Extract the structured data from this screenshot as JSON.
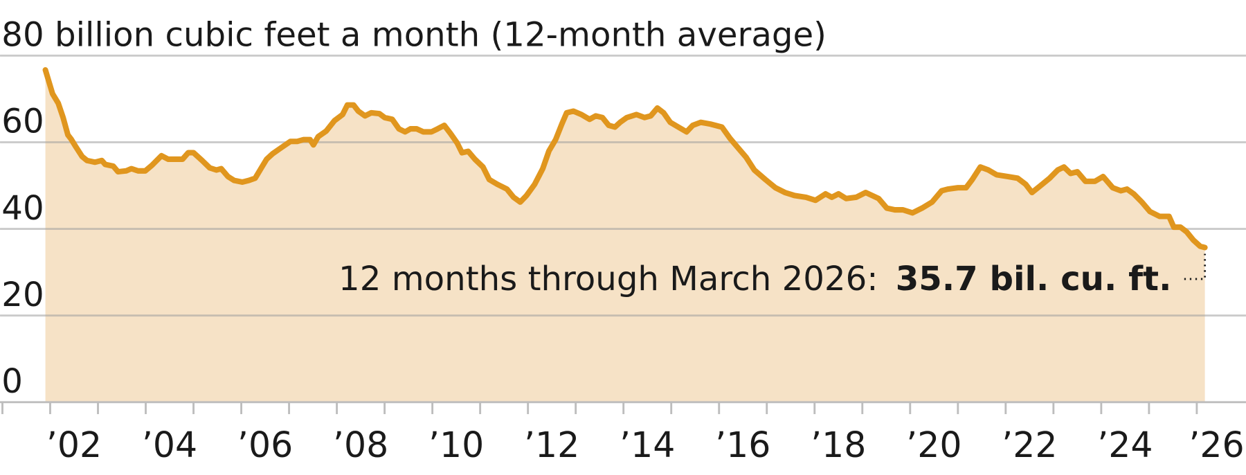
{
  "chart_data": {
    "type": "area",
    "yticks": [
      0,
      20,
      40,
      60,
      {
        "value": 80,
        "label": "80 billion cubic feet a month (12-month average)"
      }
    ],
    "ylim": [
      0,
      80
    ],
    "xlim": [
      2000.95,
      2027.03
    ],
    "xticks": [
      2001,
      2002,
      2003,
      2004,
      2005,
      2006,
      2007,
      2008,
      2009,
      2010,
      2011,
      2012,
      2013,
      2014,
      2015,
      2016,
      2017,
      2018,
      2019,
      2020,
      2021,
      2022,
      2023,
      2024,
      2025,
      2026
    ],
    "xtick_labels": [
      {
        "value": 2002.5,
        "label": "’02"
      },
      {
        "value": 2004.5,
        "label": "’04"
      },
      {
        "value": 2006.5,
        "label": "’06"
      },
      {
        "value": 2008.5,
        "label": "’08"
      },
      {
        "value": 2010.5,
        "label": "’10"
      },
      {
        "value": 2012.5,
        "label": "’12"
      },
      {
        "value": 2014.5,
        "label": "’14"
      },
      {
        "value": 2016.5,
        "label": "’16"
      },
      {
        "value": 2018.5,
        "label": "’18"
      },
      {
        "value": 2020.5,
        "label": "’20"
      },
      {
        "value": 2022.5,
        "label": "’22"
      },
      {
        "value": 2024.5,
        "label": "’24"
      },
      {
        "value": 2026.5,
        "label": "’26"
      }
    ],
    "grid": true,
    "color": "#e0961e",
    "fill": "#f6e2c6",
    "x": [
      2001.9,
      2002.05,
      2002.17,
      2002.27,
      2002.37,
      2002.44,
      2002.54,
      2002.67,
      2002.77,
      2002.94,
      2003.08,
      2003.15,
      2003.32,
      2003.42,
      2003.59,
      2003.7,
      2003.84,
      2003.99,
      2004.13,
      2004.33,
      2004.47,
      2004.63,
      2004.77,
      2004.89,
      2005.0,
      2005.18,
      2005.34,
      2005.48,
      2005.58,
      2005.72,
      2005.85,
      2006.02,
      2006.16,
      2006.29,
      2006.41,
      2006.53,
      2006.66,
      2006.83,
      2007.03,
      2007.17,
      2007.3,
      2007.44,
      2007.51,
      2007.61,
      2007.78,
      2007.95,
      2008.12,
      2008.22,
      2008.35,
      2008.45,
      2008.59,
      2008.72,
      2008.89,
      2009.0,
      2009.16,
      2009.3,
      2009.43,
      2009.54,
      2009.67,
      2009.81,
      2009.98,
      2010.11,
      2010.25,
      2010.38,
      2010.52,
      2010.62,
      2010.75,
      2010.89,
      2011.06,
      2011.19,
      2011.36,
      2011.56,
      2011.7,
      2011.84,
      2011.97,
      2012.14,
      2012.31,
      2012.44,
      2012.58,
      2012.71,
      2012.81,
      2012.95,
      2013.12,
      2013.29,
      2013.42,
      2013.56,
      2013.69,
      2013.82,
      2013.93,
      2014.07,
      2014.27,
      2014.44,
      2014.57,
      2014.71,
      2014.84,
      2014.98,
      2015.15,
      2015.32,
      2015.45,
      2015.62,
      2015.82,
      2016.06,
      2016.23,
      2016.43,
      2016.57,
      2016.74,
      2016.97,
      2017.18,
      2017.38,
      2017.58,
      2017.82,
      2018.02,
      2018.23,
      2018.36,
      2018.5,
      2018.66,
      2018.87,
      2019.07,
      2019.34,
      2019.51,
      2019.68,
      2019.85,
      2020.05,
      2020.25,
      2020.46,
      2020.66,
      2020.79,
      2021.0,
      2021.17,
      2021.3,
      2021.47,
      2021.64,
      2021.81,
      2022.04,
      2022.25,
      2022.42,
      2022.55,
      2022.72,
      2022.92,
      2023.09,
      2023.22,
      2023.36,
      2023.5,
      2023.67,
      2023.87,
      2024.04,
      2024.24,
      2024.41,
      2024.54,
      2024.68,
      2024.85,
      2025.02,
      2025.22,
      2025.42,
      2025.52,
      2025.66,
      2025.79,
      2025.93,
      2026.07,
      2026.17
    ],
    "values": [
      76.7,
      71.2,
      69,
      65.7,
      61.7,
      60.7,
      58.9,
      56.7,
      55.8,
      55.4,
      55.8,
      54.9,
      54.5,
      53.2,
      53.4,
      53.9,
      53.4,
      53.4,
      54.7,
      56.9,
      56.1,
      56.1,
      56.1,
      57.6,
      57.6,
      55.8,
      54.1,
      53.6,
      53.9,
      52.1,
      51.2,
      50.8,
      51.2,
      51.7,
      53.9,
      56.1,
      57.4,
      58.7,
      60.2,
      60.2,
      60.6,
      60.6,
      59.4,
      61.3,
      62.6,
      65,
      66.4,
      68.6,
      68.6,
      67.2,
      66.1,
      66.8,
      66.6,
      65.7,
      65.3,
      63.1,
      62.4,
      63.1,
      63.1,
      62.4,
      62.4,
      63.1,
      63.9,
      62,
      59.8,
      57.6,
      57.9,
      56.1,
      54.3,
      51.4,
      50.3,
      49.2,
      47.3,
      46.2,
      47.7,
      50.3,
      53.9,
      58,
      60.6,
      64.2,
      66.8,
      67.2,
      66.4,
      65.3,
      66.1,
      65.7,
      63.9,
      63.5,
      64.6,
      65.7,
      66.4,
      65.7,
      66.1,
      67.9,
      66.8,
      64.6,
      63.5,
      62.4,
      63.9,
      64.6,
      64.2,
      63.5,
      60.9,
      58.3,
      56.5,
      53.6,
      51.4,
      49.5,
      48.4,
      47.7,
      47.3,
      46.6,
      48.1,
      47.3,
      48.1,
      47,
      47.3,
      48.4,
      47,
      44.8,
      44.4,
      44.4,
      43.7,
      44.8,
      46.2,
      48.8,
      49.2,
      49.5,
      49.5,
      51.4,
      54.3,
      53.6,
      52.5,
      52.1,
      51.7,
      50.3,
      48.4,
      49.9,
      51.7,
      53.6,
      54.3,
      52.8,
      53.2,
      51,
      51,
      52.1,
      49.5,
      48.8,
      49.2,
      48.1,
      46.2,
      44,
      42.9,
      42.9,
      40.4,
      40.4,
      39.3,
      37.4,
      36,
      35.7
    ],
    "annotation": {
      "text": "12 months through March 2026:",
      "value_label": "35.7 bil. cu. ft."
    }
  }
}
